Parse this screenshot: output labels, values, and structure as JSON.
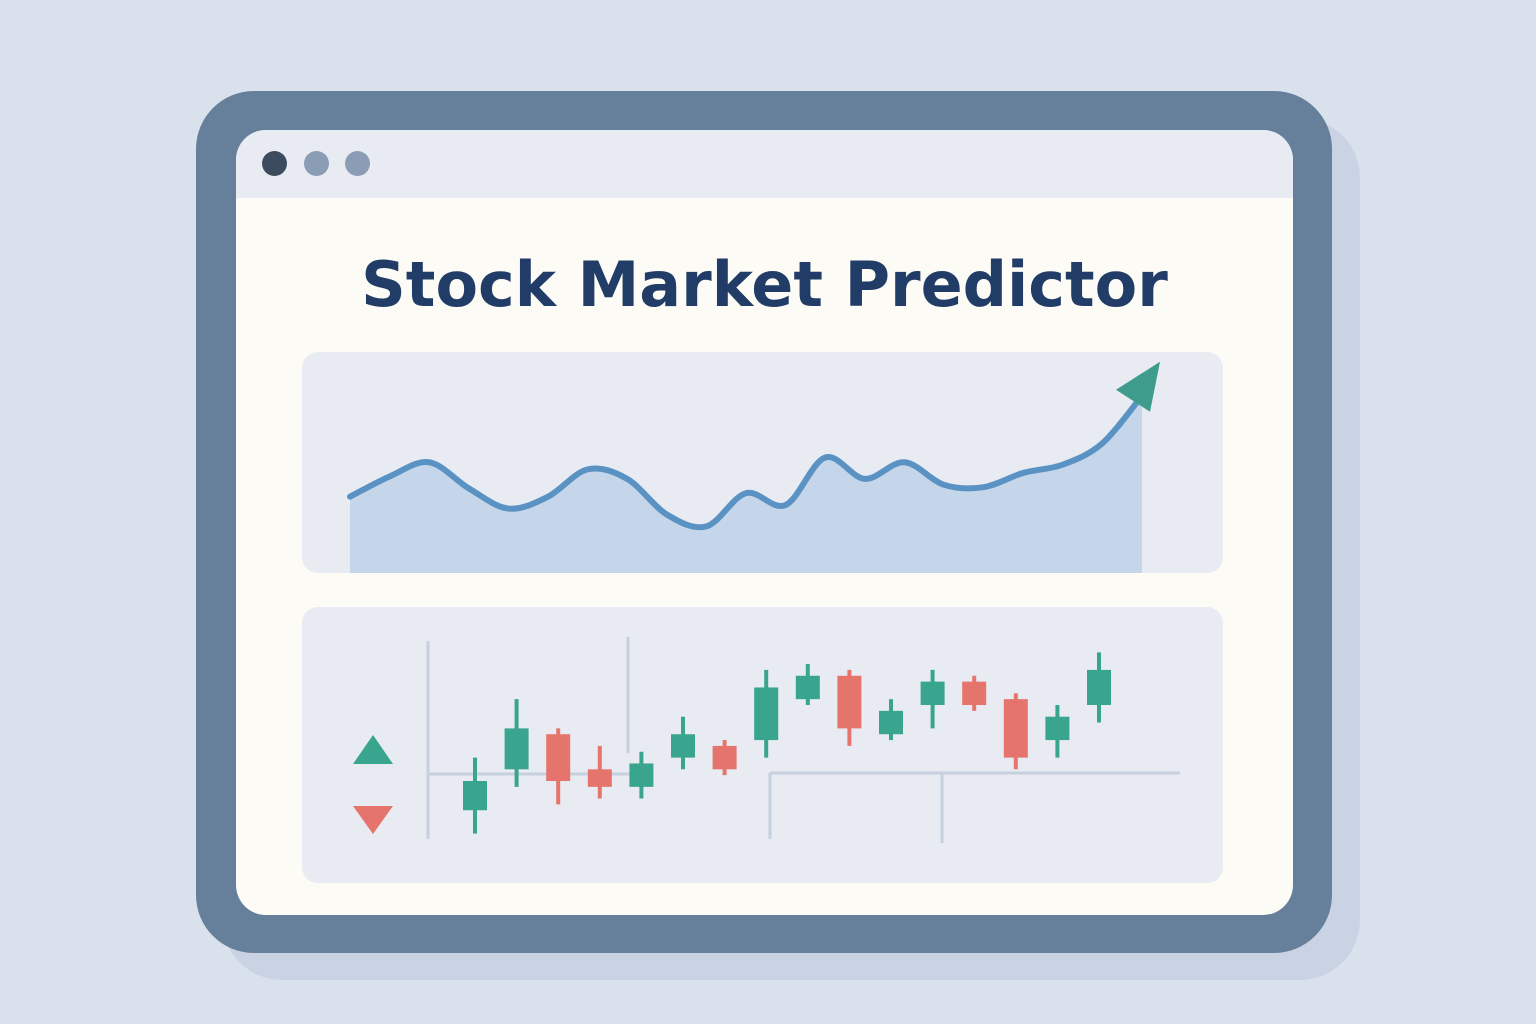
{
  "window": {
    "title": "Stock Market Predictor",
    "controls": [
      {
        "name": "close",
        "color": "#3d4b5e"
      },
      {
        "name": "minimize",
        "color": "#8b9db5"
      },
      {
        "name": "maximize",
        "color": "#8b9db5"
      }
    ]
  },
  "colors": {
    "frame": "#667f9a",
    "screen": "#fcfbf6",
    "panel": "#e8ebf2",
    "title": "#213c66",
    "line": "#5b92c4",
    "area": "#c5d6ea",
    "arrow": "#3e9c8c",
    "up": "#3aa58e",
    "down": "#e5746c",
    "grid": "#c7d0de"
  },
  "line_chart": {
    "type": "line",
    "trend": "up",
    "icon": "trend-up-arrow-icon",
    "x": [
      0,
      1,
      2,
      3,
      4,
      5,
      6,
      7,
      8,
      9,
      10,
      11,
      12,
      13,
      14,
      15,
      16,
      17,
      18,
      19,
      20
    ],
    "y": [
      55,
      72,
      84,
      62,
      45,
      55,
      78,
      70,
      40,
      30,
      58,
      48,
      88,
      70,
      84,
      65,
      63,
      75,
      82,
      100,
      140
    ]
  },
  "candle_chart": {
    "type": "candlestick",
    "legend": [
      {
        "name": "up-indicator",
        "icon": "triangle-up-icon",
        "color": "#3aa58e"
      },
      {
        "name": "down-indicator",
        "icon": "triangle-down-icon",
        "color": "#e5746c"
      }
    ],
    "candles": [
      {
        "open": 3,
        "close": 8,
        "high": 12,
        "low": -1,
        "dir": "up"
      },
      {
        "open": 10,
        "close": 17,
        "high": 22,
        "low": 7,
        "dir": "up"
      },
      {
        "open": 16,
        "close": 8,
        "high": 17,
        "low": 4,
        "dir": "down"
      },
      {
        "open": 10,
        "close": 7,
        "high": 14,
        "low": 5,
        "dir": "down"
      },
      {
        "open": 7,
        "close": 11,
        "high": 13,
        "low": 5,
        "dir": "up"
      },
      {
        "open": 12,
        "close": 16,
        "high": 19,
        "low": 10,
        "dir": "up"
      },
      {
        "open": 14,
        "close": 10,
        "high": 15,
        "low": 9,
        "dir": "down"
      },
      {
        "open": 15,
        "close": 24,
        "high": 27,
        "low": 12,
        "dir": "up"
      },
      {
        "open": 22,
        "close": 26,
        "high": 28,
        "low": 21,
        "dir": "up"
      },
      {
        "open": 26,
        "close": 17,
        "high": 27,
        "low": 14,
        "dir": "down"
      },
      {
        "open": 16,
        "close": 20,
        "high": 22,
        "low": 15,
        "dir": "up"
      },
      {
        "open": 21,
        "close": 25,
        "high": 27,
        "low": 17,
        "dir": "up"
      },
      {
        "open": 25,
        "close": 21,
        "high": 26,
        "low": 20,
        "dir": "down"
      },
      {
        "open": 22,
        "close": 12,
        "high": 23,
        "low": 10,
        "dir": "down"
      },
      {
        "open": 15,
        "close": 19,
        "high": 21,
        "low": 12,
        "dir": "up"
      },
      {
        "open": 21,
        "close": 27,
        "high": 30,
        "low": 18,
        "dir": "up"
      }
    ],
    "ylim": [
      -5,
      34
    ]
  }
}
